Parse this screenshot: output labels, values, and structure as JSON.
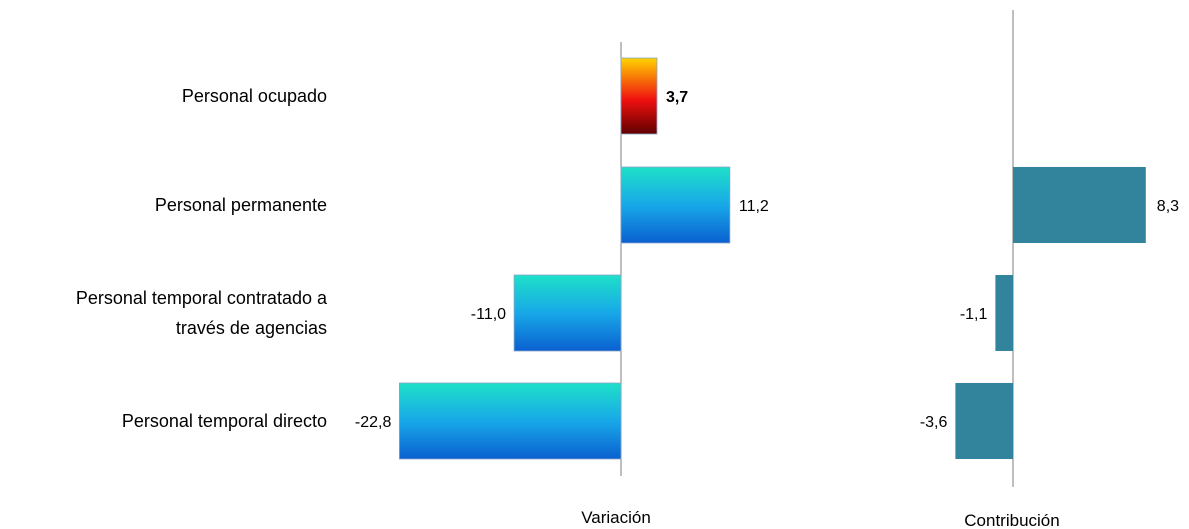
{
  "chart_data": [
    {
      "type": "bar",
      "orientation": "horizontal",
      "categories": [
        "Personal ocupado",
        "Personal permanente",
        "Personal temporal contratado a través de agencias",
        "Personal temporal directo"
      ],
      "category_lines": [
        [
          "Personal ocupado"
        ],
        [
          "Personal permanente"
        ],
        [
          "Personal temporal contratado a",
          "través de agencias"
        ],
        [
          "Personal temporal directo"
        ]
      ],
      "values": [
        3.7,
        11.2,
        -11.0,
        -22.8
      ],
      "value_labels": [
        "3,7",
        "11,2",
        "-11,0",
        "-22,8"
      ],
      "xlabel": "Variación",
      "xlim": [
        -23,
        23
      ],
      "grid": false,
      "colors": {
        "highlight_top": "#ffd400",
        "highlight_mid": "#f01010",
        "highlight_bottom": "#600000",
        "bar_top": "#1ee0c8",
        "bar_mid": "#18a8e8",
        "bar_bottom": "#0a60d0"
      }
    },
    {
      "type": "bar",
      "orientation": "horizontal",
      "categories": [
        "Personal permanente",
        "Personal temporal contratado a través de agencias",
        "Personal temporal directo"
      ],
      "values": [
        8.3,
        -1.1,
        -3.6
      ],
      "value_labels": [
        "8,3",
        "-1,1",
        "-3,6"
      ],
      "xlabel": "Contribución",
      "xlim": [
        -4.5,
        11
      ],
      "grid": false,
      "colors": {
        "bar": "#31849b"
      }
    }
  ]
}
